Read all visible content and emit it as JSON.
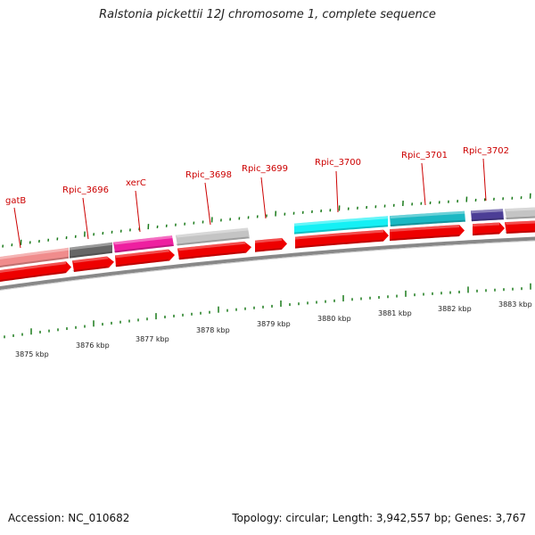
{
  "title": "Ralstonia pickettii 12J chromosome 1, complete sequence",
  "accession": "Accession: NC_010682",
  "topology": "Topology: circular; Length: 3,942,557 bp; Genes: 3,767",
  "gene_labels": [
    "gatB",
    "Rpic_3696",
    "xerC",
    "Rpic_3698",
    "Rpic_3699",
    "Rpic_3700",
    "Rpic_3701",
    "Rpic_3702"
  ],
  "kbp_labels": [
    "3875 kbp",
    "3876 kbp",
    "3877 kbp",
    "3878 kbp",
    "3879 kbp",
    "3880 kbp",
    "3881 kbp",
    "3882 kbp",
    "3883 kbp"
  ],
  "colors": {
    "cds": "#ee0000",
    "backbone": "#888888",
    "tick": "#1a7a1a",
    "label": "#cc0000",
    "cog_salmon": "#f08c8c",
    "cog_darkgray": "#666666",
    "cog_magenta": "#ee1fa0",
    "cog_lightgray": "#c4c4c4",
    "cog_cyan": "#15f0f5",
    "cog_teal": "#1bb8c3",
    "cog_purple": "#4c3e96"
  }
}
